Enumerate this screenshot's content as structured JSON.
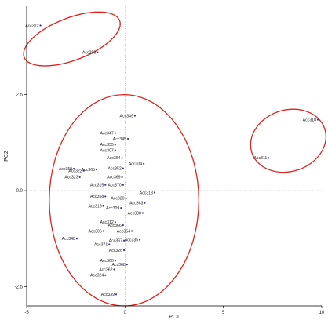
{
  "chart_data": {
    "type": "scatter",
    "title": "",
    "xlabel": "PC1",
    "ylabel": "PC2",
    "xlim": [
      -5,
      10
    ],
    "ylim": [
      -3.0,
      4.8
    ],
    "x_ticks": [
      -5,
      0,
      5,
      10
    ],
    "x_tick_labels": [
      "-5",
      "0",
      "5",
      "10"
    ],
    "y_ticks": [
      -2.5,
      0,
      2.5
    ],
    "y_tick_labels": [
      "-2.5",
      "0.0",
      "2.5"
    ],
    "reference_lines": {
      "x": 0,
      "y": 0,
      "style": "dotted"
    },
    "grid": false,
    "legend": "none",
    "colors": {
      "points": "#3a3a8c",
      "ellipses": "#e0211f",
      "reference": "#9a9a9a",
      "axis": "#000000"
    },
    "points": [
      {
        "label": "Acc372",
        "x": -4.3,
        "y": 4.3
      },
      {
        "label": "Acc353",
        "x": -1.4,
        "y": 3.6
      },
      {
        "label": "Acc349",
        "x": 0.5,
        "y": 1.95
      },
      {
        "label": "Acc347",
        "x": -0.5,
        "y": 1.5
      },
      {
        "label": "Acc345",
        "x": 0.15,
        "y": 1.35
      },
      {
        "label": "Acc355",
        "x": -0.5,
        "y": 1.2
      },
      {
        "label": "Acc307",
        "x": -0.5,
        "y": 1.05
      },
      {
        "label": "Acc364",
        "x": -0.15,
        "y": 0.85
      },
      {
        "label": "Acc304",
        "x": 0.95,
        "y": 0.7
      },
      {
        "label": "Acc359",
        "x": -2.6,
        "y": 0.57
      },
      {
        "label": "Acc322",
        "x": -2.1,
        "y": 0.52
      },
      {
        "label": "Acc365",
        "x": -1.45,
        "y": 0.55
      },
      {
        "label": "Acc352",
        "x": -0.1,
        "y": 0.58
      },
      {
        "label": "Acc323",
        "x": -2.3,
        "y": 0.35
      },
      {
        "label": "Acc369",
        "x": -0.15,
        "y": 0.35
      },
      {
        "label": "Acc315",
        "x": -1.0,
        "y": 0.15
      },
      {
        "label": "Acc370",
        "x": -0.1,
        "y": 0.15
      },
      {
        "label": "Acc318",
        "x": 1.5,
        "y": -0.05
      },
      {
        "label": "Acc358",
        "x": -1.0,
        "y": -0.15
      },
      {
        "label": "Acc320",
        "x": 0.05,
        "y": -0.2
      },
      {
        "label": "Acc363",
        "x": 1.0,
        "y": -0.32
      },
      {
        "label": "Acc319",
        "x": -1.1,
        "y": -0.4
      },
      {
        "label": "Acc309",
        "x": -0.2,
        "y": -0.45
      },
      {
        "label": "Acc308",
        "x": 0.9,
        "y": -0.58
      },
      {
        "label": "Acc312",
        "x": -0.5,
        "y": -0.82
      },
      {
        "label": "Acc366",
        "x": -0.1,
        "y": -0.9
      },
      {
        "label": "Acc354",
        "x": 0.35,
        "y": -1.05
      },
      {
        "label": "Acc306",
        "x": -1.1,
        "y": -1.05
      },
      {
        "label": "Acc367",
        "x": -0.05,
        "y": -1.3
      },
      {
        "label": "Acc335",
        "x": 0.75,
        "y": -1.28
      },
      {
        "label": "Acc348",
        "x": -2.45,
        "y": -1.25
      },
      {
        "label": "Acc371",
        "x": -0.8,
        "y": -1.4
      },
      {
        "label": "Acc326",
        "x": -0.05,
        "y": -1.55
      },
      {
        "label": "Acc360",
        "x": -0.5,
        "y": -1.82
      },
      {
        "label": "Acc368",
        "x": 0.1,
        "y": -1.92
      },
      {
        "label": "Acc362",
        "x": -0.55,
        "y": -2.05
      },
      {
        "label": "Acc324",
        "x": -1.0,
        "y": -2.2
      },
      {
        "label": "Acc339",
        "x": -0.45,
        "y": -2.7
      },
      {
        "label": "Acc310",
        "x": 9.8,
        "y": 1.85
      },
      {
        "label": "Acc311",
        "x": 7.3,
        "y": 0.85
      }
    ],
    "groups": [
      {
        "center_x": -2.7,
        "center_y": 3.95,
        "semi_axis_x": 2.6,
        "semi_axis_y": 0.55,
        "rotation_deg": -21
      },
      {
        "center_x": -0.05,
        "center_y": -0.25,
        "semi_axis_x": 3.8,
        "semi_axis_y": 2.75,
        "rotation_deg": 0
      },
      {
        "center_x": 8.3,
        "center_y": 1.3,
        "semi_axis_x": 1.95,
        "semi_axis_y": 0.8,
        "rotation_deg": -18
      }
    ]
  }
}
